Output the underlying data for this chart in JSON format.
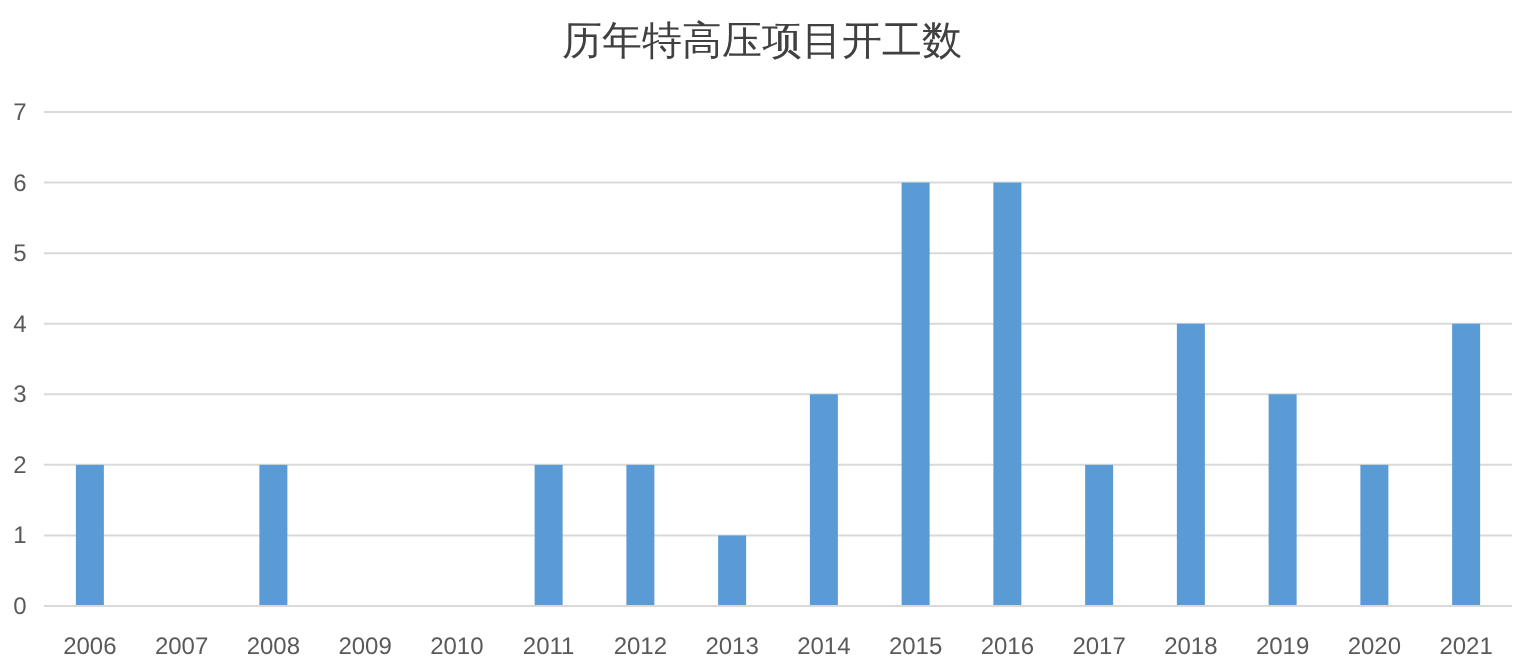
{
  "chart_data": {
    "type": "bar",
    "title": "历年特高压项目开工数",
    "categories": [
      "2006",
      "2007",
      "2008",
      "2009",
      "2010",
      "2011",
      "2012",
      "2013",
      "2014",
      "2015",
      "2016",
      "2017",
      "2018",
      "2019",
      "2020",
      "2021"
    ],
    "values": [
      2,
      0,
      2,
      0,
      0,
      2,
      2,
      1,
      3,
      6,
      6,
      2,
      4,
      3,
      2,
      4
    ],
    "color": "#5b9bd5",
    "ylim": [
      0,
      7
    ],
    "yticks": [
      0,
      1,
      2,
      3,
      4,
      5,
      6,
      7
    ],
    "grid": "y"
  }
}
